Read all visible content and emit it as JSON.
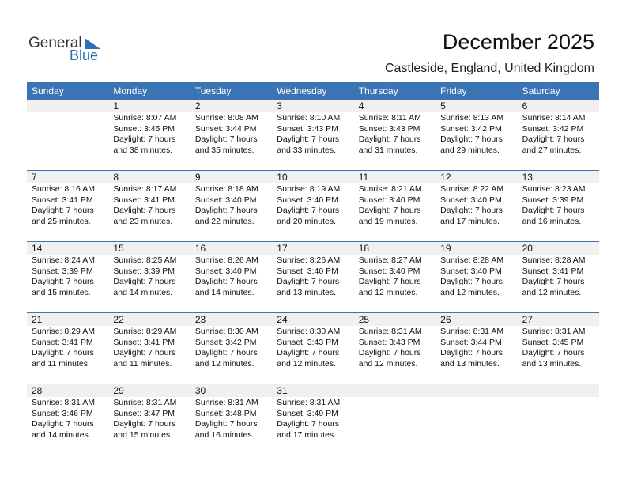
{
  "logo": {
    "word1": "General",
    "word2": "Blue"
  },
  "header": {
    "title": "December 2025",
    "location": "Castleside, England, United Kingdom"
  },
  "weekdays": [
    "Sunday",
    "Monday",
    "Tuesday",
    "Wednesday",
    "Thursday",
    "Friday",
    "Saturday"
  ],
  "weeks": [
    [
      null,
      {
        "day": "1",
        "lines": [
          "Sunrise: 8:07 AM",
          "Sunset: 3:45 PM",
          "Daylight: 7 hours",
          "and 38 minutes."
        ]
      },
      {
        "day": "2",
        "lines": [
          "Sunrise: 8:08 AM",
          "Sunset: 3:44 PM",
          "Daylight: 7 hours",
          "and 35 minutes."
        ]
      },
      {
        "day": "3",
        "lines": [
          "Sunrise: 8:10 AM",
          "Sunset: 3:43 PM",
          "Daylight: 7 hours",
          "and 33 minutes."
        ]
      },
      {
        "day": "4",
        "lines": [
          "Sunrise: 8:11 AM",
          "Sunset: 3:43 PM",
          "Daylight: 7 hours",
          "and 31 minutes."
        ]
      },
      {
        "day": "5",
        "lines": [
          "Sunrise: 8:13 AM",
          "Sunset: 3:42 PM",
          "Daylight: 7 hours",
          "and 29 minutes."
        ]
      },
      {
        "day": "6",
        "lines": [
          "Sunrise: 8:14 AM",
          "Sunset: 3:42 PM",
          "Daylight: 7 hours",
          "and 27 minutes."
        ]
      }
    ],
    [
      {
        "day": "7",
        "lines": [
          "Sunrise: 8:16 AM",
          "Sunset: 3:41 PM",
          "Daylight: 7 hours",
          "and 25 minutes."
        ]
      },
      {
        "day": "8",
        "lines": [
          "Sunrise: 8:17 AM",
          "Sunset: 3:41 PM",
          "Daylight: 7 hours",
          "and 23 minutes."
        ]
      },
      {
        "day": "9",
        "lines": [
          "Sunrise: 8:18 AM",
          "Sunset: 3:40 PM",
          "Daylight: 7 hours",
          "and 22 minutes."
        ]
      },
      {
        "day": "10",
        "lines": [
          "Sunrise: 8:19 AM",
          "Sunset: 3:40 PM",
          "Daylight: 7 hours",
          "and 20 minutes."
        ]
      },
      {
        "day": "11",
        "lines": [
          "Sunrise: 8:21 AM",
          "Sunset: 3:40 PM",
          "Daylight: 7 hours",
          "and 19 minutes."
        ]
      },
      {
        "day": "12",
        "lines": [
          "Sunrise: 8:22 AM",
          "Sunset: 3:40 PM",
          "Daylight: 7 hours",
          "and 17 minutes."
        ]
      },
      {
        "day": "13",
        "lines": [
          "Sunrise: 8:23 AM",
          "Sunset: 3:39 PM",
          "Daylight: 7 hours",
          "and 16 minutes."
        ]
      }
    ],
    [
      {
        "day": "14",
        "lines": [
          "Sunrise: 8:24 AM",
          "Sunset: 3:39 PM",
          "Daylight: 7 hours",
          "and 15 minutes."
        ]
      },
      {
        "day": "15",
        "lines": [
          "Sunrise: 8:25 AM",
          "Sunset: 3:39 PM",
          "Daylight: 7 hours",
          "and 14 minutes."
        ]
      },
      {
        "day": "16",
        "lines": [
          "Sunrise: 8:26 AM",
          "Sunset: 3:40 PM",
          "Daylight: 7 hours",
          "and 14 minutes."
        ]
      },
      {
        "day": "17",
        "lines": [
          "Sunrise: 8:26 AM",
          "Sunset: 3:40 PM",
          "Daylight: 7 hours",
          "and 13 minutes."
        ]
      },
      {
        "day": "18",
        "lines": [
          "Sunrise: 8:27 AM",
          "Sunset: 3:40 PM",
          "Daylight: 7 hours",
          "and 12 minutes."
        ]
      },
      {
        "day": "19",
        "lines": [
          "Sunrise: 8:28 AM",
          "Sunset: 3:40 PM",
          "Daylight: 7 hours",
          "and 12 minutes."
        ]
      },
      {
        "day": "20",
        "lines": [
          "Sunrise: 8:28 AM",
          "Sunset: 3:41 PM",
          "Daylight: 7 hours",
          "and 12 minutes."
        ]
      }
    ],
    [
      {
        "day": "21",
        "lines": [
          "Sunrise: 8:29 AM",
          "Sunset: 3:41 PM",
          "Daylight: 7 hours",
          "and 11 minutes."
        ]
      },
      {
        "day": "22",
        "lines": [
          "Sunrise: 8:29 AM",
          "Sunset: 3:41 PM",
          "Daylight: 7 hours",
          "and 11 minutes."
        ]
      },
      {
        "day": "23",
        "lines": [
          "Sunrise: 8:30 AM",
          "Sunset: 3:42 PM",
          "Daylight: 7 hours",
          "and 12 minutes."
        ]
      },
      {
        "day": "24",
        "lines": [
          "Sunrise: 8:30 AM",
          "Sunset: 3:43 PM",
          "Daylight: 7 hours",
          "and 12 minutes."
        ]
      },
      {
        "day": "25",
        "lines": [
          "Sunrise: 8:31 AM",
          "Sunset: 3:43 PM",
          "Daylight: 7 hours",
          "and 12 minutes."
        ]
      },
      {
        "day": "26",
        "lines": [
          "Sunrise: 8:31 AM",
          "Sunset: 3:44 PM",
          "Daylight: 7 hours",
          "and 13 minutes."
        ]
      },
      {
        "day": "27",
        "lines": [
          "Sunrise: 8:31 AM",
          "Sunset: 3:45 PM",
          "Daylight: 7 hours",
          "and 13 minutes."
        ]
      }
    ],
    [
      {
        "day": "28",
        "lines": [
          "Sunrise: 8:31 AM",
          "Sunset: 3:46 PM",
          "Daylight: 7 hours",
          "and 14 minutes."
        ]
      },
      {
        "day": "29",
        "lines": [
          "Sunrise: 8:31 AM",
          "Sunset: 3:47 PM",
          "Daylight: 7 hours",
          "and 15 minutes."
        ]
      },
      {
        "day": "30",
        "lines": [
          "Sunrise: 8:31 AM",
          "Sunset: 3:48 PM",
          "Daylight: 7 hours",
          "and 16 minutes."
        ]
      },
      {
        "day": "31",
        "lines": [
          "Sunrise: 8:31 AM",
          "Sunset: 3:49 PM",
          "Daylight: 7 hours",
          "and 17 minutes."
        ]
      },
      null,
      null,
      null
    ]
  ]
}
